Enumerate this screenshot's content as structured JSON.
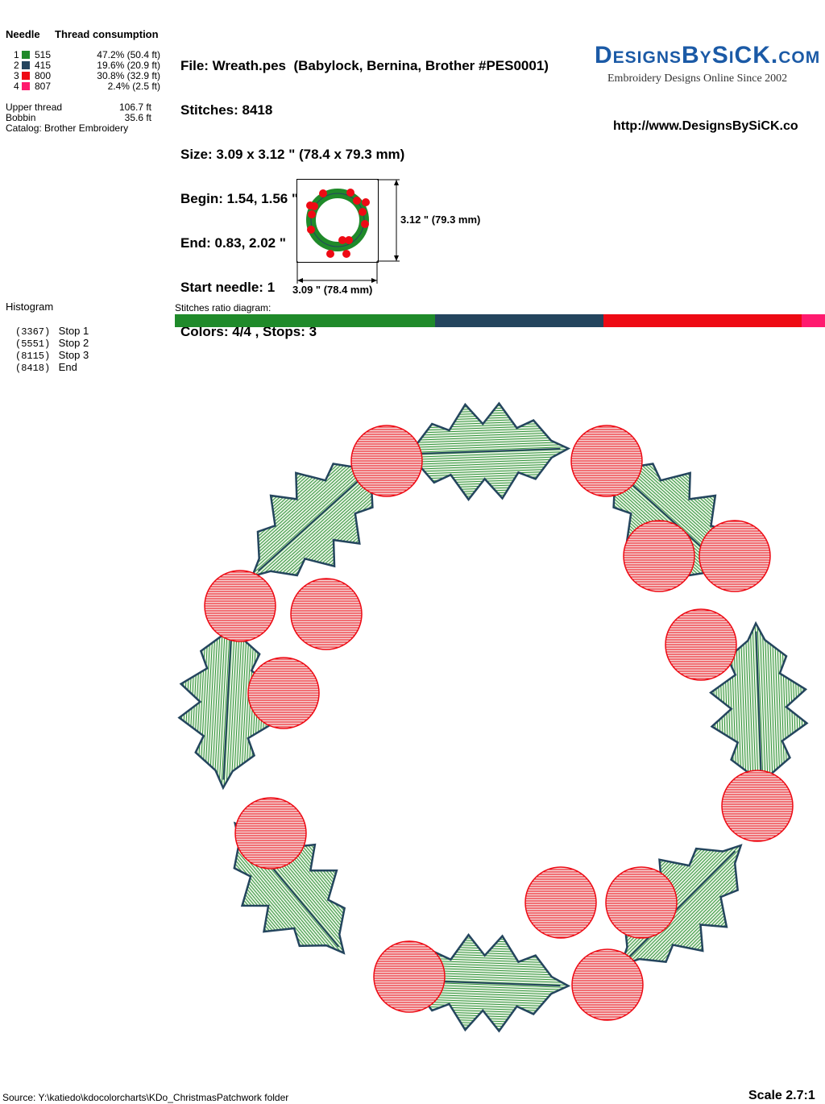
{
  "thread_table": {
    "header_needle": "Needle",
    "header_consumption": "Thread consumption",
    "rows": [
      {
        "needle": "1",
        "code": "515",
        "usage": "47.2% (50.4 ft)",
        "color": "#1f8a2a"
      },
      {
        "needle": "2",
        "code": "415",
        "usage": "19.6% (20.9 ft)",
        "color": "#24455e"
      },
      {
        "needle": "3",
        "code": "800",
        "usage": "30.8% (32.9 ft)",
        "color": "#ee0a14"
      },
      {
        "needle": "4",
        "code": "807",
        "usage": "2.4% (2.5 ft)",
        "color": "#ff1a6e"
      }
    ],
    "upper_label": "Upper thread",
    "upper_value": "106.7 ft",
    "bobbin_label": "Bobbin",
    "bobbin_value": "35.6 ft",
    "catalog": "Catalog: Brother Embroidery"
  },
  "file_info": {
    "file": "File: Wreath.pes  (Babylock, Bernina, Brother #PES0001)",
    "stitches": "Stitches: 8418",
    "size": "Size: 3.09 x 3.12 \" (78.4 x 79.3 mm)",
    "begin": "Begin: 1.54, 1.56 \"",
    "end": "End: 0.83, 2.02 \"",
    "start_needle": "Start needle: 1",
    "colors": "Colors: 4/4 , Stops: 3"
  },
  "brand": {
    "logo": "DesignsBySiCK.com",
    "tagline": "Embroidery Designs Online Since 2002",
    "url": "http://www.DesignsBySiCK.co"
  },
  "thumbnail": {
    "height_label": "3.12 \" (79.3 mm)",
    "width_label": "3.09 \" (78.4 mm)"
  },
  "histogram": {
    "title": "Histogram",
    "stops": [
      {
        "count": "(3367)",
        "label": "Stop 1"
      },
      {
        "count": "(5551)",
        "label": "Stop 2"
      },
      {
        "count": "(8115)",
        "label": "Stop 3"
      },
      {
        "count": "(8418)",
        "label": "End"
      }
    ]
  },
  "ratio": {
    "title": "Stitches ratio diagram:",
    "segments": [
      {
        "fraction": 0.3999,
        "color": "#1f8a2a"
      },
      {
        "fraction": 0.2595,
        "color": "#24455e"
      },
      {
        "fraction": 0.3046,
        "color": "#ee0a14"
      },
      {
        "fraction": 0.036,
        "color": "#ff1a6e"
      }
    ]
  },
  "footer": {
    "source": "Source: Y:\\katiedo\\kdocolorcharts\\KDo_ChristmasPatchwork folder",
    "scale": "Scale 2.7:1"
  }
}
